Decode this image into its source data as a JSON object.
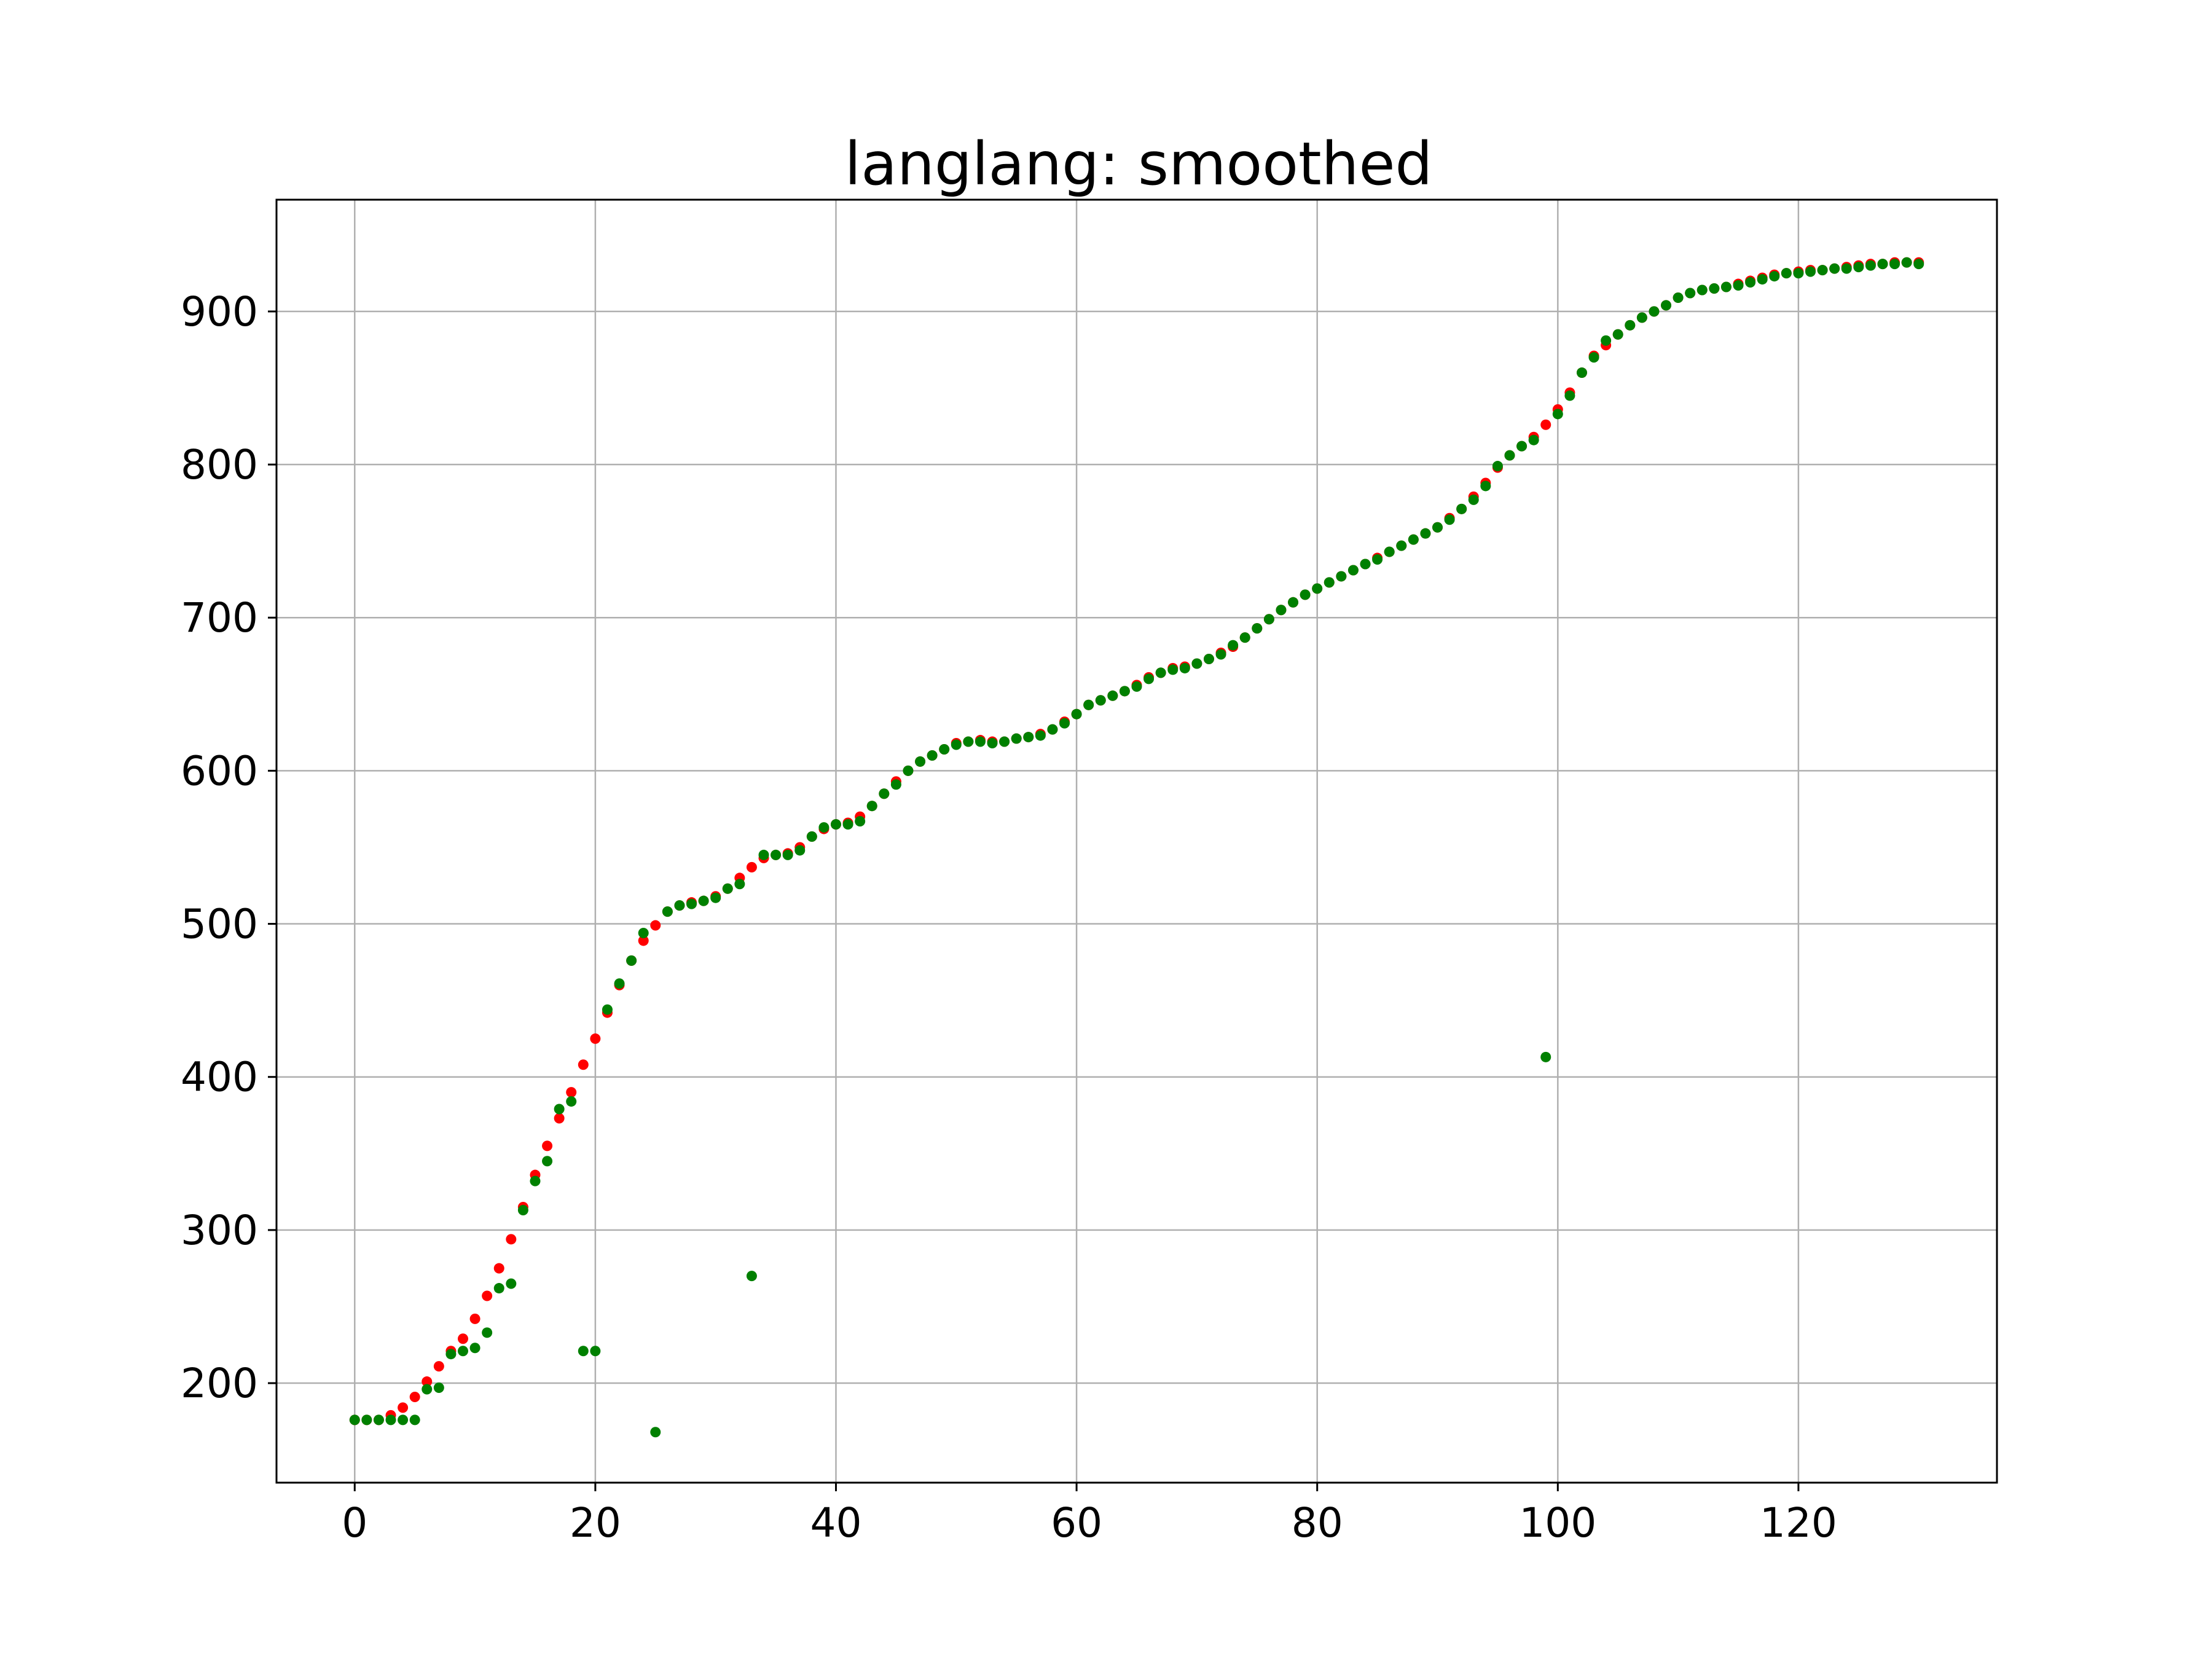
{
  "chart_data": {
    "type": "scatter",
    "title": "langlang: smoothed",
    "xlabel": "",
    "ylabel": "",
    "xlim": [
      -6.5,
      136.5
    ],
    "ylim": [
      135,
      973
    ],
    "x_ticks": [
      0,
      20,
      40,
      60,
      80,
      100,
      120
    ],
    "y_ticks": [
      200,
      300,
      400,
      500,
      600,
      700,
      800,
      900
    ],
    "grid": true,
    "legend": "none",
    "colors": {
      "smoothed": "#ff0000",
      "raw": "#008000",
      "grid": "#b0b0b0"
    },
    "series": [
      {
        "color": "#ff0000",
        "x": [
          0,
          1,
          2,
          3,
          4,
          5,
          6,
          7,
          8,
          9,
          10,
          11,
          12,
          13,
          14,
          15,
          16,
          17,
          18,
          19,
          20,
          21,
          22,
          23,
          24,
          25,
          26,
          27,
          28,
          29,
          30,
          31,
          32,
          33,
          34,
          35,
          36,
          37,
          38,
          39,
          40,
          41,
          42,
          43,
          44,
          45,
          46,
          47,
          48,
          49,
          50,
          51,
          52,
          53,
          54,
          55,
          56,
          57,
          58,
          59,
          60,
          61,
          62,
          63,
          64,
          65,
          66,
          67,
          68,
          69,
          70,
          71,
          72,
          73,
          74,
          75,
          76,
          77,
          78,
          79,
          80,
          81,
          82,
          83,
          84,
          85,
          86,
          87,
          88,
          89,
          90,
          91,
          92,
          93,
          94,
          95,
          96,
          97,
          98,
          99,
          100,
          101,
          102,
          103,
          104,
          105,
          106,
          107,
          108,
          109,
          110,
          111,
          112,
          113,
          114,
          115,
          116,
          117,
          118,
          119,
          120,
          121,
          122,
          123,
          124,
          125,
          126,
          127,
          128,
          129,
          130
        ],
        "y": [
          176,
          176,
          176,
          179,
          184,
          191,
          201,
          211,
          221,
          229,
          242,
          257,
          275,
          294,
          315,
          336,
          355,
          373,
          390,
          408,
          425,
          442,
          460,
          476,
          489,
          499,
          508,
          512,
          514,
          515,
          518,
          523,
          530,
          537,
          543,
          545,
          546,
          550,
          557,
          562,
          565,
          566,
          570,
          577,
          585,
          593,
          600,
          606,
          610,
          614,
          618,
          619,
          620,
          619,
          619,
          621,
          622,
          624,
          627,
          632,
          637,
          643,
          646,
          649,
          652,
          656,
          661,
          664,
          667,
          668,
          670,
          673,
          677,
          681,
          687,
          693,
          699,
          705,
          710,
          715,
          719,
          723,
          727,
          731,
          735,
          739,
          743,
          747,
          751,
          755,
          759,
          765,
          771,
          779,
          788,
          798,
          806,
          812,
          818,
          826,
          836,
          847,
          860,
          871,
          878,
          885,
          891,
          896,
          900,
          904,
          909,
          912,
          914,
          915,
          916,
          918,
          920,
          922,
          924,
          925,
          926,
          927,
          927,
          928,
          929,
          930,
          931,
          931,
          932,
          932,
          932
        ]
      },
      {
        "color": "#008000",
        "x": [
          0,
          1,
          2,
          3,
          4,
          5,
          6,
          7,
          8,
          9,
          10,
          11,
          12,
          13,
          14,
          15,
          16,
          17,
          18,
          19,
          20,
          21,
          22,
          23,
          24,
          25,
          26,
          27,
          28,
          29,
          30,
          31,
          32,
          33,
          34,
          35,
          36,
          37,
          38,
          39,
          40,
          41,
          42,
          43,
          44,
          45,
          46,
          47,
          48,
          49,
          50,
          51,
          52,
          53,
          54,
          55,
          56,
          57,
          58,
          59,
          60,
          61,
          62,
          63,
          64,
          65,
          66,
          67,
          68,
          69,
          70,
          71,
          72,
          73,
          74,
          75,
          76,
          77,
          78,
          79,
          80,
          81,
          82,
          83,
          84,
          85,
          86,
          87,
          88,
          89,
          90,
          91,
          92,
          93,
          94,
          95,
          96,
          97,
          98,
          99,
          100,
          101,
          102,
          103,
          104,
          105,
          106,
          107,
          108,
          109,
          110,
          111,
          112,
          113,
          114,
          115,
          116,
          117,
          118,
          119,
          120,
          121,
          122,
          123,
          124,
          125,
          126,
          127,
          128,
          129,
          130
        ],
        "y": [
          176,
          176,
          176,
          176,
          176,
          176,
          196,
          197,
          219,
          221,
          223,
          233,
          262,
          265,
          313,
          332,
          345,
          379,
          384,
          221,
          221,
          444,
          461,
          476,
          494,
          168,
          508,
          512,
          513,
          515,
          517,
          523,
          526,
          270,
          545,
          545,
          545,
          548,
          557,
          563,
          565,
          565,
          567,
          577,
          585,
          591,
          600,
          606,
          610,
          614,
          617,
          619,
          619,
          618,
          619,
          621,
          622,
          623,
          627,
          631,
          637,
          643,
          646,
          649,
          652,
          655,
          660,
          664,
          666,
          667,
          670,
          673,
          676,
          682,
          687,
          693,
          699,
          705,
          710,
          715,
          719,
          723,
          727,
          731,
          735,
          738,
          743,
          747,
          751,
          755,
          759,
          764,
          771,
          777,
          786,
          799,
          806,
          812,
          816,
          413,
          833,
          845,
          860,
          870,
          881,
          885,
          891,
          896,
          900,
          904,
          909,
          912,
          914,
          915,
          916,
          917,
          919,
          921,
          923,
          925,
          925,
          926,
          927,
          928,
          928,
          929,
          930,
          931,
          931,
          932,
          931
        ]
      }
    ]
  }
}
